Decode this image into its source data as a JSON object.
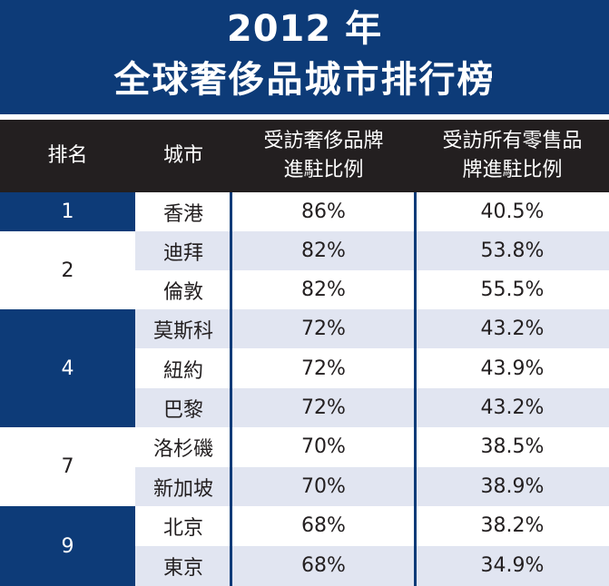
{
  "title": {
    "line1": "2012 年",
    "line2": "全球奢侈品城市排行榜"
  },
  "headers": {
    "rank": "排名",
    "city": "城市",
    "luxury_pct_l1": "受訪奢侈品牌",
    "luxury_pct_l2": "進駐比例",
    "retail_pct_l1": "受訪所有零售品",
    "retail_pct_l2": "牌進駐比例"
  },
  "rank_groups": [
    "1",
    "2",
    "4",
    "7",
    "9"
  ],
  "rows": [
    {
      "city": "香港",
      "luxury": "86%",
      "retail": "40.5%"
    },
    {
      "city": "迪拜",
      "luxury": "82%",
      "retail": "53.8%"
    },
    {
      "city": "倫敦",
      "luxury": "82%",
      "retail": "55.5%"
    },
    {
      "city": "莫斯科",
      "luxury": "72%",
      "retail": "43.2%"
    },
    {
      "city": "紐約",
      "luxury": "72%",
      "retail": "43.9%"
    },
    {
      "city": "巴黎",
      "luxury": "72%",
      "retail": "43.2%"
    },
    {
      "city": "洛杉磯",
      "luxury": "70%",
      "retail": "38.5%"
    },
    {
      "city": "新加坡",
      "luxury": "70%",
      "retail": "38.9%"
    },
    {
      "city": "北京",
      "luxury": "68%",
      "retail": "38.2%"
    },
    {
      "city": "東京",
      "luxury": "68%",
      "retail": "34.9%"
    }
  ],
  "colors": {
    "navy": "#0d3b78",
    "header": "#231f20",
    "stripe": "#e1e5f1"
  }
}
